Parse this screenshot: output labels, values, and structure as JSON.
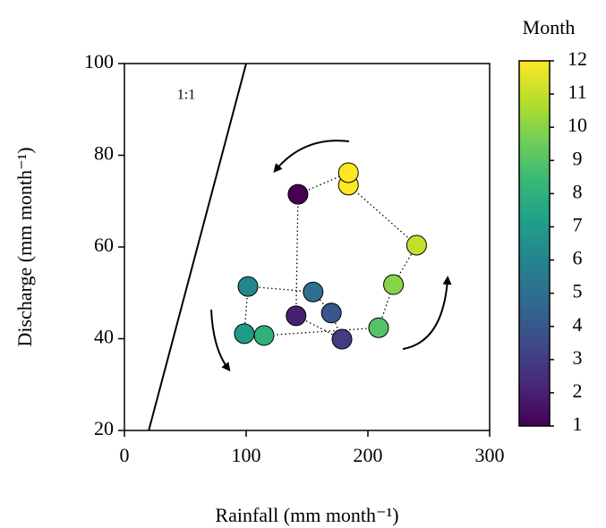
{
  "chart_data": {
    "type": "scatter",
    "xlabel": "Rainfall (mm month⁻¹)",
    "ylabel": "Discharge (mm month⁻¹)",
    "x": [
      142.6,
      141,
      178.7,
      170,
      155,
      101.5,
      98.5,
      114.7,
      208.8,
      221,
      240,
      184,
      184
    ],
    "y": [
      71.5,
      45,
      39.9,
      45.6,
      50.2,
      51.4,
      41.1,
      40.7,
      42.4,
      51.8,
      60.4,
      73.5,
      76.2
    ],
    "month": [
      1,
      2,
      3,
      4,
      5,
      6,
      7,
      8,
      9,
      10,
      11,
      12,
      12
    ],
    "colormap": "viridis",
    "colorbar_label": "Month",
    "colorbar_lim": [
      1,
      12
    ],
    "colorbar_ticks": [
      1,
      2,
      3,
      4,
      5,
      6,
      7,
      8,
      9,
      10,
      11,
      12
    ],
    "connect": true,
    "identity_line": true,
    "identity_label": "1:1",
    "xlim": [
      0,
      300
    ],
    "xticks": [
      0,
      100,
      200,
      300
    ],
    "ylim": [
      20,
      100
    ],
    "yticks": [
      20,
      40,
      60,
      80,
      100
    ]
  }
}
